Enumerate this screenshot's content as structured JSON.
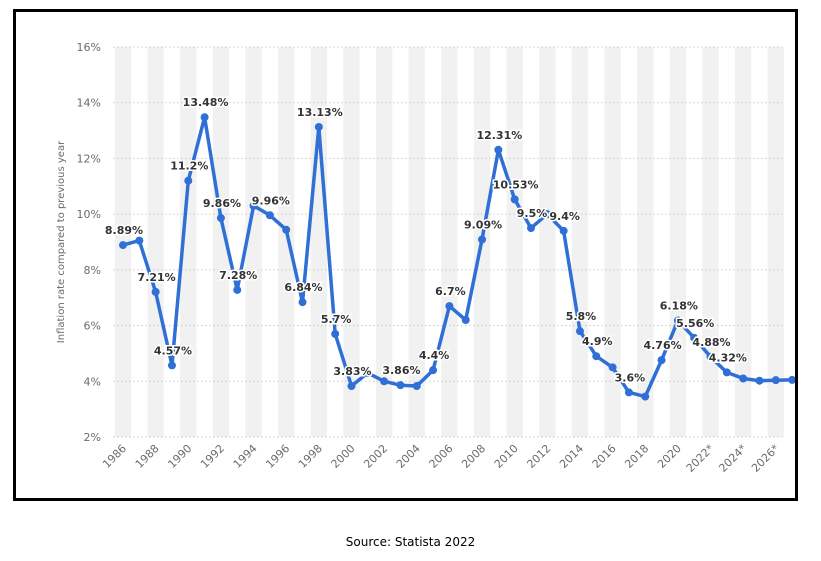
{
  "chart_data": {
    "type": "line",
    "title": "",
    "xlabel": "",
    "ylabel": "Inflation rate compared to previous year",
    "ylim": [
      2,
      16
    ],
    "yticks": [
      2,
      4,
      6,
      8,
      10,
      12,
      14,
      16
    ],
    "ytick_labels": [
      "2%",
      "4%",
      "6%",
      "8%",
      "10%",
      "12%",
      "14%",
      "16%"
    ],
    "xlim": [
      1986,
      2027
    ],
    "xtick_labels": [
      "1986",
      "1988",
      "1990",
      "1992",
      "1994",
      "1996",
      "1998",
      "2000",
      "2002",
      "2004",
      "2006",
      "2008",
      "2010",
      "2012",
      "2014",
      "2016",
      "2018",
      "2020",
      "2022*",
      "2024*",
      "2026*"
    ],
    "grid": true,
    "series": [
      {
        "name": "Inflation rate",
        "color": "#2f6fd6",
        "x": [
          1986,
          1987,
          1988,
          1989,
          1990,
          1991,
          1992,
          1993,
          1994,
          1995,
          1996,
          1997,
          1998,
          1999,
          2000,
          2001,
          2002,
          2003,
          2004,
          2005,
          2006,
          2007,
          2008,
          2009,
          2010,
          2011,
          2012,
          2013,
          2014,
          2015,
          2016,
          2017,
          2018,
          2019,
          2020,
          2021,
          2022,
          2023,
          2024,
          2025,
          2026,
          2027
        ],
        "values": [
          8.89,
          9.05,
          7.21,
          4.57,
          11.2,
          13.48,
          9.86,
          7.28,
          10.3,
          9.96,
          9.44,
          6.84,
          13.13,
          5.7,
          3.83,
          4.3,
          4.0,
          3.86,
          3.83,
          4.4,
          6.7,
          6.2,
          9.09,
          12.31,
          10.53,
          9.5,
          10.0,
          9.4,
          5.8,
          4.9,
          4.5,
          3.6,
          3.45,
          4.76,
          6.18,
          5.56,
          4.88,
          4.32,
          4.1,
          4.02,
          4.04,
          4.05
        ]
      }
    ],
    "data_labels": [
      {
        "x": 1986,
        "text": "8.89%"
      },
      {
        "x": 1988,
        "text": "7.21%"
      },
      {
        "x": 1989,
        "text": "4.57%"
      },
      {
        "x": 1990,
        "text": "11.2%"
      },
      {
        "x": 1991,
        "text": "13.48%"
      },
      {
        "x": 1992,
        "text": "9.86%"
      },
      {
        "x": 1993,
        "text": "7.28%"
      },
      {
        "x": 1995,
        "text": "9.96%"
      },
      {
        "x": 1997,
        "text": "6.84%"
      },
      {
        "x": 1998,
        "text": "13.13%"
      },
      {
        "x": 1999,
        "text": "5.7%"
      },
      {
        "x": 2000,
        "text": "3.83%"
      },
      {
        "x": 2003,
        "text": "3.86%"
      },
      {
        "x": 2005,
        "text": "4.4%"
      },
      {
        "x": 2006,
        "text": "6.7%"
      },
      {
        "x": 2008,
        "text": "9.09%"
      },
      {
        "x": 2009,
        "text": "12.31%"
      },
      {
        "x": 2010,
        "text": "10.53%"
      },
      {
        "x": 2011,
        "text": "9.5%"
      },
      {
        "x": 2013,
        "text": "9.4%"
      },
      {
        "x": 2014,
        "text": "5.8%"
      },
      {
        "x": 2015,
        "text": "4.9%"
      },
      {
        "x": 2017,
        "text": "3.6%"
      },
      {
        "x": 2019,
        "text": "4.76%"
      },
      {
        "x": 2020,
        "text": "6.18%"
      },
      {
        "x": 2021,
        "text": "5.56%"
      },
      {
        "x": 2022,
        "text": "4.88%"
      },
      {
        "x": 2023,
        "text": "4.32%"
      }
    ]
  },
  "caption": "Source: Statista 2022"
}
